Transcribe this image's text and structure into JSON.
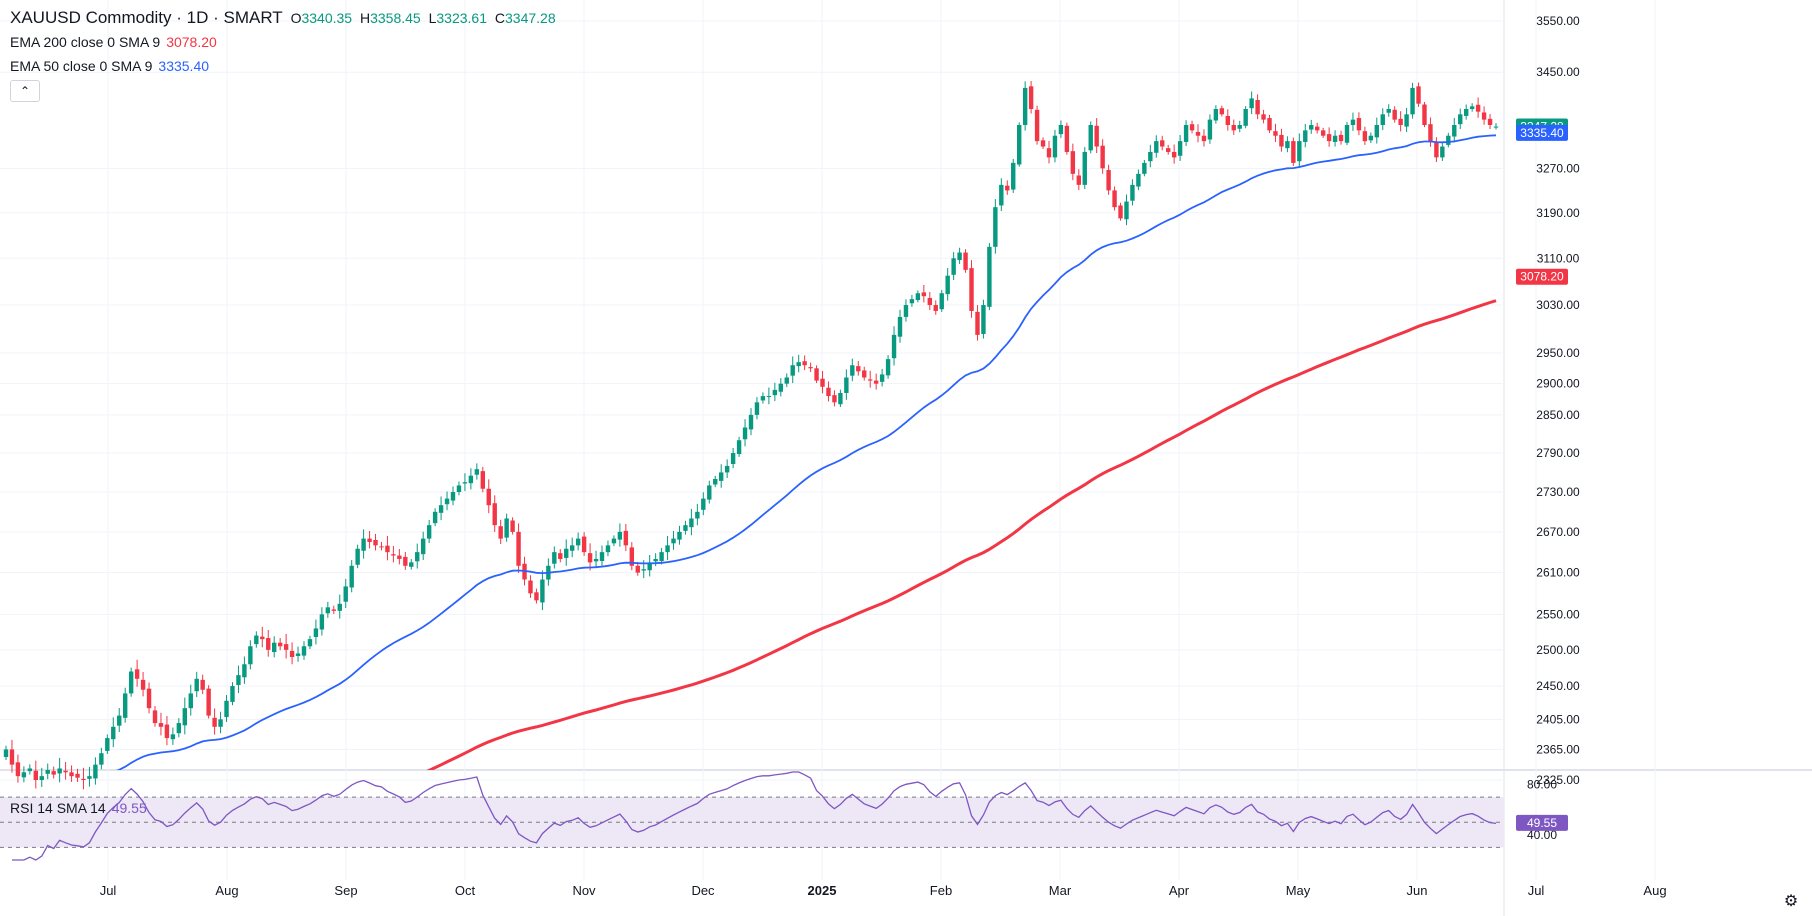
{
  "legend": {
    "symbol_line": "XAUUSD Commodity · 1D · SMART",
    "open_label": "O",
    "open": "3340.35",
    "high_label": "H",
    "high": "3358.45",
    "low_label": "L",
    "low": "3323.61",
    "close_label": "C",
    "close": "3347.28",
    "ema200_label": "EMA 200 close 0 SMA 9",
    "ema200_value": "3078.20",
    "ema50_label": "EMA 50 close 0 SMA 9",
    "ema50_value": "3335.40"
  },
  "rsi_legend": {
    "label": "RSI 14 SMA 14",
    "value": "49.55"
  },
  "colors": {
    "up": "#089981",
    "down": "#f23645",
    "ema50": "#2962ff",
    "ema200": "#f23645",
    "rsi": "#7e57c2",
    "rsi_band": "#ede7f6"
  },
  "icons": {
    "collapse": "chevron-up-icon",
    "settings": "gear-icon"
  },
  "chart_data": [
    {
      "type": "candlestick",
      "title": "XAUUSD Commodity · 1D · SMART",
      "yscale": "log",
      "y_ticks": [
        2325,
        2365,
        2405,
        2450,
        2500,
        2550,
        2610,
        2670,
        2730,
        2790,
        2850,
        2900,
        2950,
        3030,
        3110,
        3190,
        3270,
        3450,
        3550
      ],
      "y_tick_labels": [
        "2325.00",
        "2365.00",
        "2405.00",
        "2450.00",
        "2500.00",
        "2550.00",
        "2610.00",
        "2670.00",
        "2730.00",
        "2790.00",
        "2850.00",
        "2900.00",
        "2950.00",
        "3030.00",
        "3110.00",
        "3190.00",
        "3270.00",
        "3450.00",
        "3550.00"
      ],
      "x_labels": [
        "Jul",
        "Aug",
        "Sep",
        "Oct",
        "Nov",
        "Dec",
        "2025",
        "Feb",
        "Mar",
        "Apr",
        "May",
        "Jun",
        "Jul",
        "Aug"
      ],
      "last_close_label": "3347.28",
      "ema50_last_label": "3335.40",
      "ema200_last_label": "3078.20",
      "closes": [
        2365,
        2345,
        2330,
        2335,
        2340,
        2325,
        2330,
        2338,
        2332,
        2340,
        2335,
        2330,
        2328,
        2325,
        2330,
        2345,
        2360,
        2380,
        2395,
        2410,
        2440,
        2470,
        2460,
        2445,
        2420,
        2400,
        2395,
        2380,
        2385,
        2400,
        2420,
        2440,
        2460,
        2445,
        2410,
        2395,
        2405,
        2430,
        2450,
        2465,
        2480,
        2505,
        2520,
        2515,
        2500,
        2510,
        2505,
        2500,
        2490,
        2495,
        2505,
        2515,
        2530,
        2550,
        2560,
        2555,
        2565,
        2590,
        2620,
        2645,
        2660,
        2655,
        2650,
        2648,
        2640,
        2635,
        2630,
        2620,
        2625,
        2640,
        2660,
        2680,
        2700,
        2710,
        2720,
        2730,
        2740,
        2745,
        2755,
        2765,
        2735,
        2710,
        2680,
        2660,
        2690,
        2670,
        2620,
        2600,
        2580,
        2570,
        2600,
        2620,
        2640,
        2630,
        2645,
        2650,
        2660,
        2640,
        2625,
        2630,
        2640,
        2650,
        2660,
        2670,
        2650,
        2620,
        2610,
        2615,
        2625,
        2630,
        2640,
        2650,
        2660,
        2670,
        2680,
        2690,
        2700,
        2720,
        2740,
        2750,
        2760,
        2770,
        2790,
        2810,
        2830,
        2850,
        2870,
        2880,
        2880,
        2890,
        2900,
        2910,
        2930,
        2935,
        2930,
        2925,
        2905,
        2895,
        2880,
        2870,
        2885,
        2910,
        2930,
        2920,
        2910,
        2905,
        2900,
        2915,
        2940,
        2980,
        3010,
        3030,
        3040,
        3050,
        3045,
        3030,
        3020,
        3050,
        3080,
        3110,
        3120,
        3090,
        3020,
        2980,
        3030,
        3130,
        3200,
        3240,
        3230,
        3280,
        3350,
        3420,
        3380,
        3320,
        3310,
        3290,
        3330,
        3350,
        3300,
        3260,
        3240,
        3300,
        3350,
        3310,
        3270,
        3230,
        3200,
        3180,
        3210,
        3240,
        3260,
        3280,
        3300,
        3320,
        3310,
        3300,
        3290,
        3320,
        3350,
        3340,
        3330,
        3320,
        3360,
        3380,
        3370,
        3350,
        3340,
        3350,
        3380,
        3400,
        3370,
        3360,
        3340,
        3330,
        3310,
        3320,
        3280,
        3320,
        3340,
        3350,
        3340,
        3330,
        3320,
        3330,
        3320,
        3350,
        3360,
        3340,
        3320,
        3330,
        3350,
        3370,
        3380,
        3360,
        3350,
        3370,
        3420,
        3390,
        3350,
        3320,
        3290,
        3310,
        3330,
        3350,
        3370,
        3380,
        3385,
        3375,
        3360,
        3350,
        3347
      ]
    },
    {
      "type": "line",
      "title": "RSI 14 SMA 14",
      "y_ticks": [
        40,
        80
      ],
      "y_tick_labels": [
        "40.00",
        "80.00"
      ],
      "bands": [
        30,
        50,
        70
      ],
      "last_value_label": "49.55"
    }
  ]
}
